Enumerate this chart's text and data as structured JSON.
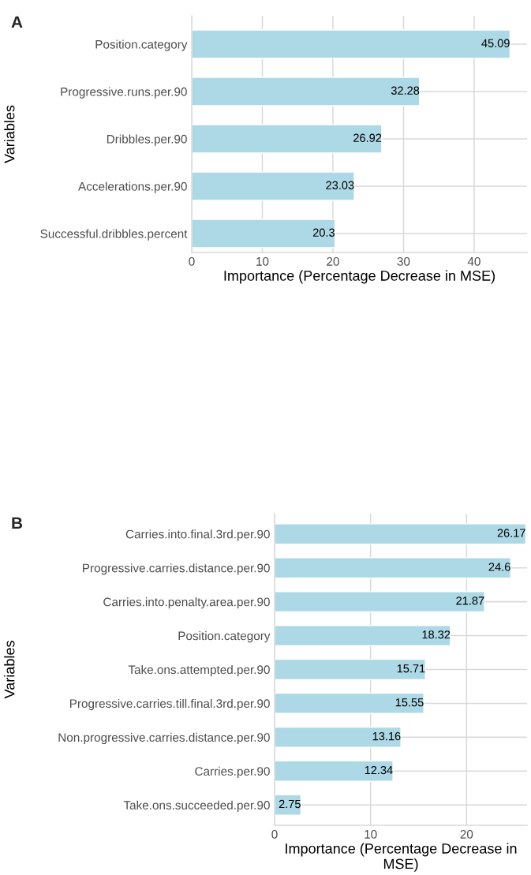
{
  "chart_data": [
    {
      "type": "bar",
      "orientation": "horizontal",
      "title": "A",
      "xlabel": "Importance (Percentage Decrease in MSE)",
      "ylabel": "Variables",
      "categories": [
        "Position.category",
        "Progressive.runs.per.90",
        "Dribbles.per.90",
        "Accelerations.per.90",
        "Successful.dribbles.percent"
      ],
      "values": [
        45.09,
        32.28,
        26.92,
        23.03,
        20.3
      ],
      "color": "#add8e6",
      "xlim": [
        0,
        47.5
      ],
      "xticks": [
        0,
        10,
        20,
        30,
        40
      ],
      "grid": true,
      "data_labels": true
    },
    {
      "type": "bar",
      "orientation": "horizontal",
      "title": "B",
      "xlabel": "Importance (Percentage Decrease in MSE)",
      "ylabel": "Variables",
      "categories": [
        "Carries.into.final.3rd.per.90",
        "Progressive.carries.distance.per.90",
        "Carries.into.penalty.area.per.90",
        "Position.category",
        "Take.ons.attempted.per.90",
        "Progressive.carries.till.final.3rd.per.90",
        "Non.progressive.carries.distance.per.90",
        "Carries.per.90",
        "Take.ons.succeeded.per.90"
      ],
      "values": [
        26.17,
        24.6,
        21.87,
        18.32,
        15.71,
        15.55,
        13.16,
        12.34,
        2.75
      ],
      "color": "#add8e6",
      "xlim": [
        0,
        26.3
      ],
      "xticks": [
        0,
        10,
        20
      ],
      "grid": true,
      "data_labels": true
    }
  ]
}
